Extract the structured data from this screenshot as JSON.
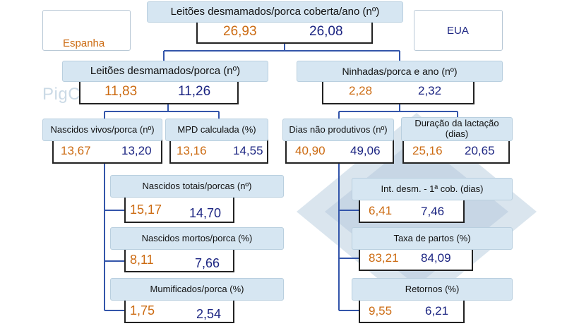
{
  "legend": {
    "spain": "Espanha",
    "usa": "EUA"
  },
  "watermark": "PigCHAMP Pro Europa",
  "colors": {
    "spain": "#cc6b12",
    "usa": "#1c2582",
    "header_bg": "#d6e6f2",
    "connector": "#3355aa"
  },
  "nodes": {
    "top": {
      "label": "Leitões desmamados/porca coberta/ano (nº)",
      "spain": "26,93",
      "usa": "26,08"
    },
    "weaned": {
      "label": "Leitões desmamados/porca (nº)",
      "spain": "11,83",
      "usa": "11,26"
    },
    "litters": {
      "label": "Ninhadas/porca e ano (nº)",
      "spain": "2,28",
      "usa": "2,32"
    },
    "born_alive": {
      "label": "Nascidos vivos/porca (nº)",
      "spain": "13,67",
      "usa": "13,20"
    },
    "mpd": {
      "label": "MPD calculada (%)",
      "spain": "13,16",
      "usa": "14,55"
    },
    "npd": {
      "label": "Dias não produtivos (nº)",
      "spain": "40,90",
      "usa": "49,06"
    },
    "lactation": {
      "label": "Duração da lactação (dias)",
      "spain": "25,16",
      "usa": "20,65"
    },
    "total_born": {
      "label": "Nascidos totais/porcas (nº)",
      "spain": "15,17",
      "usa": "14,70"
    },
    "stillborn": {
      "label": "Nascidos mortos/porca (%)",
      "spain": "8,11",
      "usa": "7,66"
    },
    "mummified": {
      "label": "Mumificados/porca (%)",
      "spain": "1,75",
      "usa": "2,54"
    },
    "wean_service": {
      "label": "Int. desm. - 1ª cob. (dias)",
      "spain": "6,41",
      "usa": "7,46"
    },
    "farrowing_rate": {
      "label": "Taxa de partos (%)",
      "spain": "83,21",
      "usa": "84,09"
    },
    "returns": {
      "label": "Retornos (%)",
      "spain": "9,55",
      "usa": "6,21"
    }
  }
}
